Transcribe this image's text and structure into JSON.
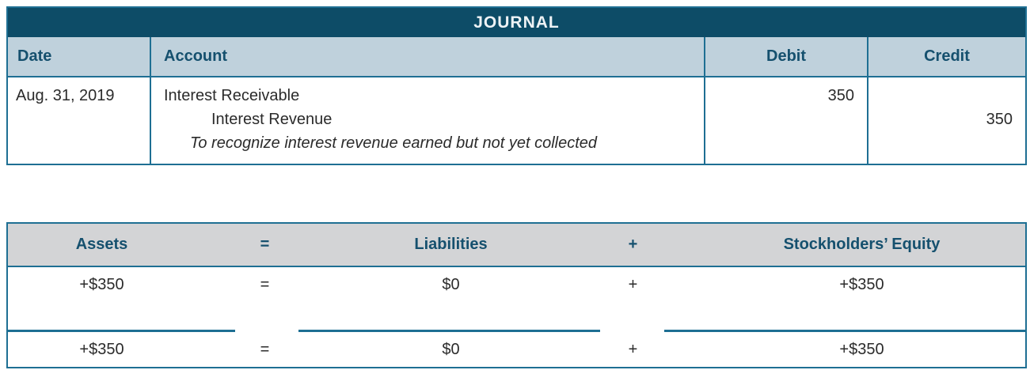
{
  "journal": {
    "title": "JOURNAL",
    "columns": {
      "date": "Date",
      "account": "Account",
      "debit": "Debit",
      "credit": "Credit"
    },
    "entry": {
      "date": "Aug. 31, 2019",
      "debit_account": "Interest Receivable",
      "credit_account": "Interest Revenue",
      "memo": "To recognize interest revenue earned but not yet collected",
      "debit_amount": "350",
      "credit_amount": "350"
    }
  },
  "equation": {
    "headers": {
      "assets": "Assets",
      "equals": "=",
      "liabilities": "Liabilities",
      "plus": "+",
      "equity": "Stockholders’ Equity"
    },
    "rows": [
      {
        "assets": "+$350",
        "equals": "=",
        "liabilities": "$0",
        "plus": "+",
        "equity": "+$350"
      },
      {
        "assets": "+$350",
        "equals": "=",
        "liabilities": "$0",
        "plus": "+",
        "equity": "+$350"
      }
    ]
  },
  "colors": {
    "header_dark_teal": "#0d4c67",
    "header_light_blue": "#bfd1dc",
    "equation_header_gray": "#d3d4d6",
    "border_teal": "#1e6f93",
    "heading_text_teal": "#15506e",
    "body_text": "#2b2b2b",
    "background": "#ffffff"
  }
}
